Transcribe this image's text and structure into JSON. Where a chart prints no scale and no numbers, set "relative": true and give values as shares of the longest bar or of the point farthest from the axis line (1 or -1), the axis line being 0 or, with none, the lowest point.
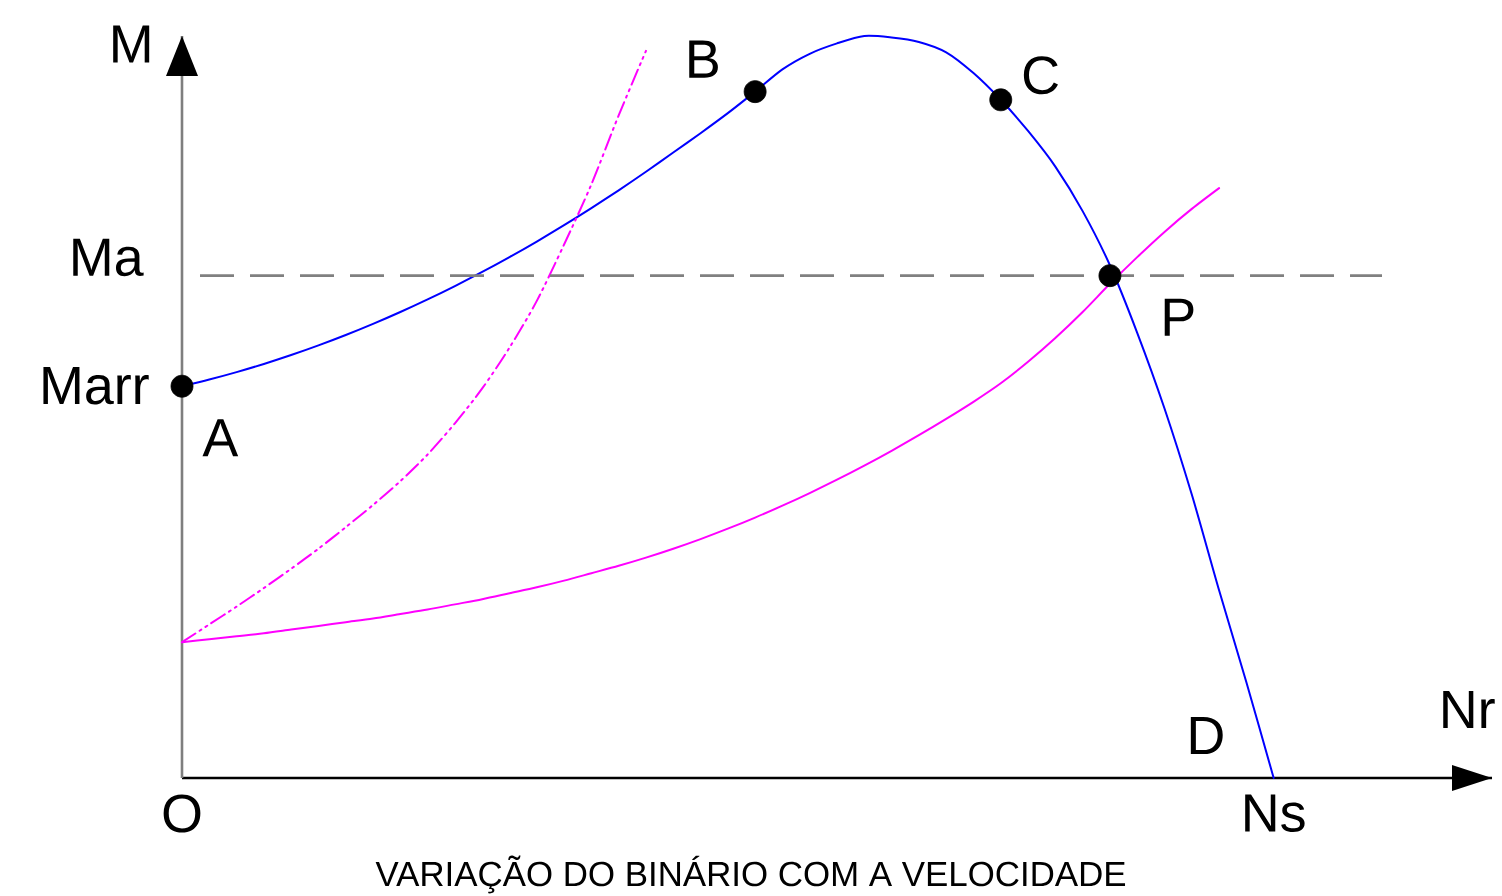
{
  "chart_data": {
    "type": "line",
    "title": "VARIAÇÃO DO BINÁRIO COM A VELOCIDADE",
    "xlabel": "Nr",
    "ylabel": "M",
    "relative": true,
    "categories": [
      "O",
      null,
      null,
      null,
      null,
      null,
      null,
      null,
      null,
      null,
      null,
      null,
      null,
      null,
      null,
      null,
      null,
      null,
      null,
      null,
      null,
      null,
      null,
      null,
      null,
      null,
      null,
      null,
      null,
      null,
      null,
      null,
      null,
      null,
      null,
      null,
      null,
      null,
      null,
      null,
      "Ns",
      null,
      null,
      null,
      null,
      null,
      null,
      null,
      null
    ],
    "series": [
      {
        "color": "#0000ff",
        "values": [
          0.528,
          0.537,
          0.547,
          0.558,
          0.57,
          0.583,
          0.597,
          0.612,
          0.628,
          0.645,
          0.663,
          0.682,
          0.702,
          0.723,
          0.745,
          0.768,
          0.792,
          0.817,
          0.843,
          0.869,
          0.896,
          0.925,
          0.955,
          0.976,
          0.99,
          1.0,
          0.998,
          0.992,
          0.978,
          0.95,
          0.914,
          0.872,
          0.824,
          0.764,
          0.691,
          0.6,
          0.498,
          0.382,
          0.253,
          0.129,
          0.0,
          null,
          null,
          null,
          null,
          null,
          null,
          null,
          null
        ]
      },
      {
        "color": "#ff00ff",
        "values": [
          0.183,
          0.187,
          0.191,
          0.195,
          0.2,
          0.205,
          0.21,
          0.215,
          0.221,
          0.227,
          0.234,
          0.241,
          0.249,
          0.257,
          0.266,
          0.276,
          0.286,
          0.297,
          0.309,
          0.322,
          0.336,
          0.351,
          0.367,
          0.384,
          0.402,
          0.421,
          0.441,
          0.462,
          0.484,
          0.507,
          0.532,
          0.561,
          0.593,
          0.628,
          0.666,
          0.702,
          0.736,
          0.767,
          0.795,
          null,
          null,
          null,
          null,
          null,
          null,
          null,
          null,
          null,
          null
        ]
      },
      {
        "color": "#ff00ff",
        "line_style": "dashdot",
        "values": [
          0.183,
          0.207,
          0.231,
          0.256,
          0.282,
          0.309,
          0.338,
          0.368,
          0.4,
          0.436,
          0.478,
          0.525,
          0.58,
          0.643,
          0.719,
          0.8,
          0.893,
          0.98,
          null,
          null,
          null,
          null,
          null,
          null,
          null,
          null,
          null,
          null,
          null,
          null,
          null,
          null,
          null,
          null,
          null,
          null,
          null,
          null,
          null,
          null,
          null,
          null,
          null,
          null,
          null,
          null,
          null,
          null,
          null
        ]
      },
      {
        "type": "scatter",
        "name": "A",
        "color": "#000000",
        "marker": "circle",
        "values": [
          0.528,
          null,
          null,
          null,
          null,
          null,
          null,
          null,
          null,
          null,
          null,
          null,
          null,
          null,
          null,
          null,
          null,
          null,
          null,
          null,
          null,
          null,
          null,
          null,
          null,
          null,
          null,
          null,
          null,
          null,
          null,
          null,
          null,
          null,
          null,
          null,
          null,
          null,
          null,
          null,
          null,
          null,
          null,
          null,
          null,
          null,
          null,
          null,
          null
        ]
      },
      {
        "type": "scatter",
        "name": "B",
        "color": "#000000",
        "marker": "circle",
        "values": [
          null,
          null,
          null,
          null,
          null,
          null,
          null,
          null,
          null,
          null,
          null,
          null,
          null,
          null,
          null,
          null,
          null,
          null,
          null,
          null,
          null,
          0.925,
          null,
          null,
          null,
          null,
          null,
          null,
          null,
          null,
          null,
          null,
          null,
          null,
          null,
          null,
          null,
          null,
          null,
          null,
          null,
          null,
          null,
          null,
          null,
          null,
          null,
          null,
          null
        ]
      },
      {
        "type": "scatter",
        "name": "C",
        "color": "#000000",
        "marker": "circle",
        "values": [
          null,
          null,
          null,
          null,
          null,
          null,
          null,
          null,
          null,
          null,
          null,
          null,
          null,
          null,
          null,
          null,
          null,
          null,
          null,
          null,
          null,
          null,
          null,
          null,
          null,
          null,
          null,
          null,
          null,
          null,
          0.914,
          null,
          null,
          null,
          null,
          null,
          null,
          null,
          null,
          null,
          null,
          null,
          null,
          null,
          null,
          null,
          null,
          null,
          null
        ]
      },
      {
        "type": "scatter",
        "name": "P",
        "color": "#000000",
        "marker": "circle",
        "values": [
          null,
          null,
          null,
          null,
          null,
          null,
          null,
          null,
          null,
          null,
          null,
          null,
          null,
          null,
          null,
          null,
          null,
          null,
          null,
          null,
          null,
          null,
          null,
          null,
          null,
          null,
          null,
          null,
          null,
          null,
          null,
          null,
          null,
          null,
          0.677,
          null,
          null,
          null,
          null,
          null,
          null,
          null,
          null,
          null,
          null,
          null,
          null,
          null,
          null
        ]
      }
    ],
    "ref_lines": [
      {
        "axis": "y",
        "value": 0.677,
        "label": "Ma",
        "color": "#808080",
        "line_style": "dashed"
      }
    ],
    "annotations": [
      "Marr",
      {
        "text": "D",
        "x": "Ns",
        "y": 0
      }
    ]
  }
}
